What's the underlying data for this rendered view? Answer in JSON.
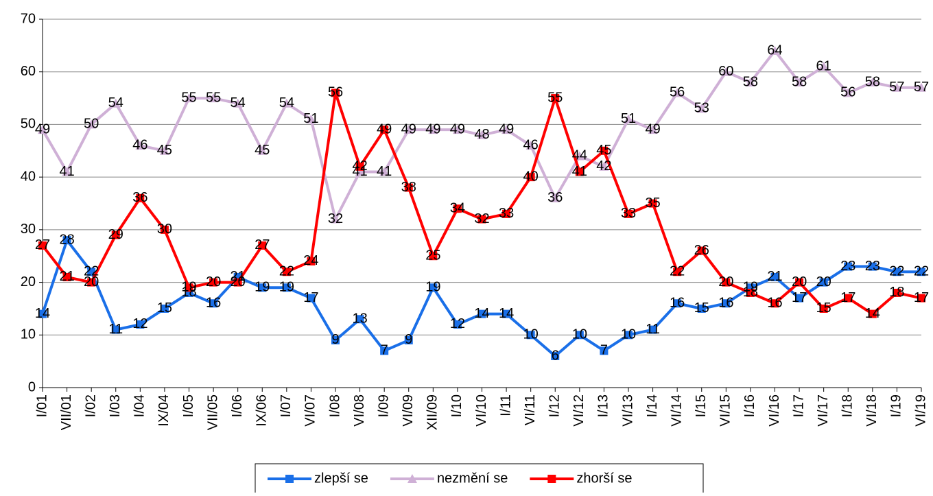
{
  "chart_data": {
    "type": "line",
    "categories": [
      "I/01",
      "VII/01",
      "I/02",
      "I/03",
      "I/04",
      "IX/04",
      "I/05",
      "VII/05",
      "I/06",
      "IX/06",
      "I/07",
      "VI/07",
      "I/08",
      "VI/08",
      "I/09",
      "VI/09",
      "XII/09",
      "I/10",
      "VI/10",
      "I/11",
      "VI/11",
      "I/12",
      "VI/12",
      "I/13",
      "VI/13",
      "I/14",
      "VI/14",
      "I/15",
      "VI/15",
      "I/16",
      "VI/16",
      "I/17",
      "VI/17",
      "I/18",
      "VI/18",
      "I/19",
      "VI/19"
    ],
    "series": [
      {
        "name": "zlepší se",
        "color": "#1a6fe8",
        "marker": "square",
        "values": [
          14,
          28,
          22,
          11,
          12,
          15,
          18,
          16,
          21,
          19,
          19,
          17,
          9,
          13,
          7,
          9,
          19,
          12,
          14,
          14,
          10,
          6,
          10,
          7,
          10,
          11,
          16,
          15,
          16,
          19,
          21,
          17,
          20,
          23,
          23,
          22,
          22
        ]
      },
      {
        "name": "nezmění se",
        "color": "#cfb0d6",
        "marker": "triangle",
        "values": [
          49,
          41,
          50,
          54,
          46,
          45,
          55,
          55,
          54,
          45,
          54,
          51,
          32,
          41,
          41,
          49,
          49,
          49,
          48,
          49,
          46,
          36,
          44,
          42,
          51,
          49,
          56,
          53,
          60,
          58,
          64,
          58,
          61,
          56,
          58,
          57,
          57
        ]
      },
      {
        "name": "zhorší se",
        "color": "#ff0000",
        "marker": "square",
        "values": [
          27,
          21,
          20,
          29,
          36,
          30,
          19,
          20,
          20,
          27,
          22,
          24,
          56,
          42,
          49,
          38,
          25,
          34,
          32,
          33,
          40,
          55,
          41,
          45,
          33,
          35,
          22,
          26,
          20,
          18,
          16,
          20,
          15,
          17,
          14,
          18,
          17
        ]
      }
    ],
    "ylim": [
      0,
      70
    ],
    "yticks": [
      0,
      10,
      20,
      30,
      40,
      50,
      60,
      70
    ],
    "grid": true,
    "legend": "bottom"
  }
}
